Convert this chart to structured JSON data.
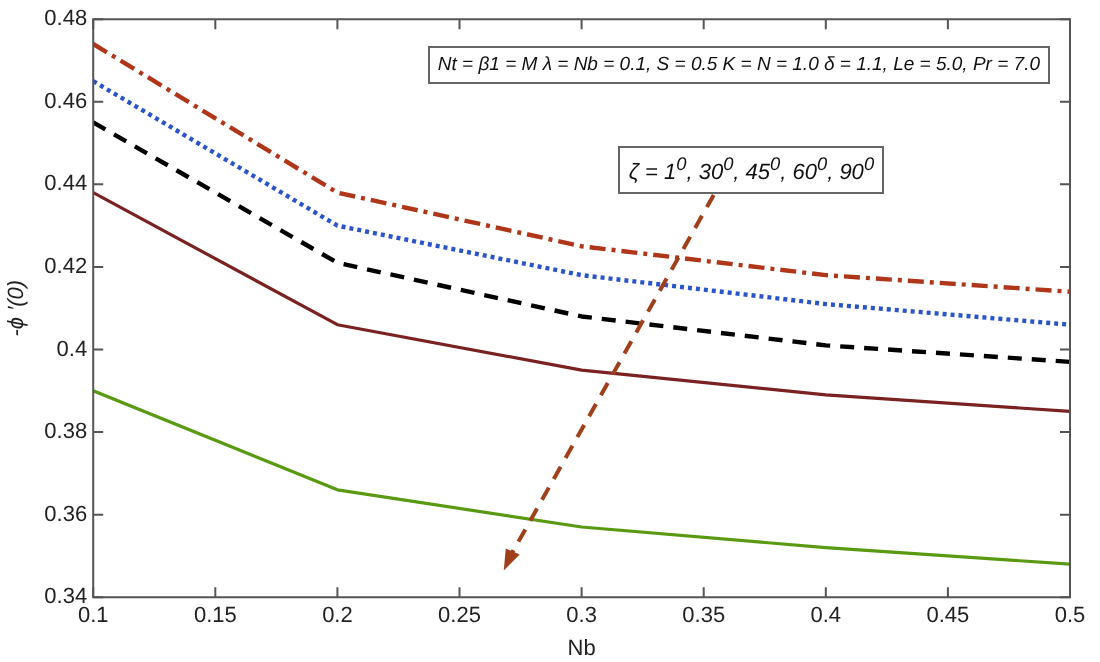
{
  "chart_data": {
    "type": "line",
    "xlabel": "Nb",
    "ylabel": "-ϕ ′(0)",
    "x": [
      0.1,
      0.2,
      0.3,
      0.4,
      0.5
    ],
    "series": [
      {
        "color": "#b0361a",
        "line_style": "dashdot",
        "values": [
          0.474,
          0.438,
          0.425,
          0.418,
          0.414
        ]
      },
      {
        "color": "#2a55c8",
        "line_style": "dotted",
        "values": [
          0.465,
          0.43,
          0.418,
          0.411,
          0.406
        ]
      },
      {
        "color": "#000000",
        "line_style": "dashed",
        "values": [
          0.455,
          0.421,
          0.408,
          0.401,
          0.397
        ]
      },
      {
        "color": "#7a2222",
        "line_style": "solid",
        "values": [
          0.438,
          0.406,
          0.395,
          0.389,
          0.385
        ]
      },
      {
        "color": "#5a9a12",
        "line_style": "solid",
        "values": [
          0.39,
          0.366,
          0.357,
          0.352,
          0.348
        ]
      }
    ],
    "xlim": [
      0.1,
      0.5
    ],
    "xticks": [
      0.1,
      0.15,
      0.2,
      0.25,
      0.3,
      0.35,
      0.4,
      0.45,
      0.5
    ],
    "ylim": [
      0.34,
      0.48
    ],
    "yticks": [
      0.34,
      0.36,
      0.38,
      0.4,
      0.42,
      0.44,
      0.46,
      0.48
    ],
    "grid": false,
    "legend": false,
    "marker": "none",
    "annotations": [
      "Nt = β1 = M λ = Nb = 0.1, S = 0.5 K = N = 1.0 δ = 1.1, Le = 5.0, Pr = 7.0",
      "ζ = 1$^{0}$, 30$^{0}$, 45$^{0}$, 60$^{0}$, 90$^{0}$"
    ]
  }
}
